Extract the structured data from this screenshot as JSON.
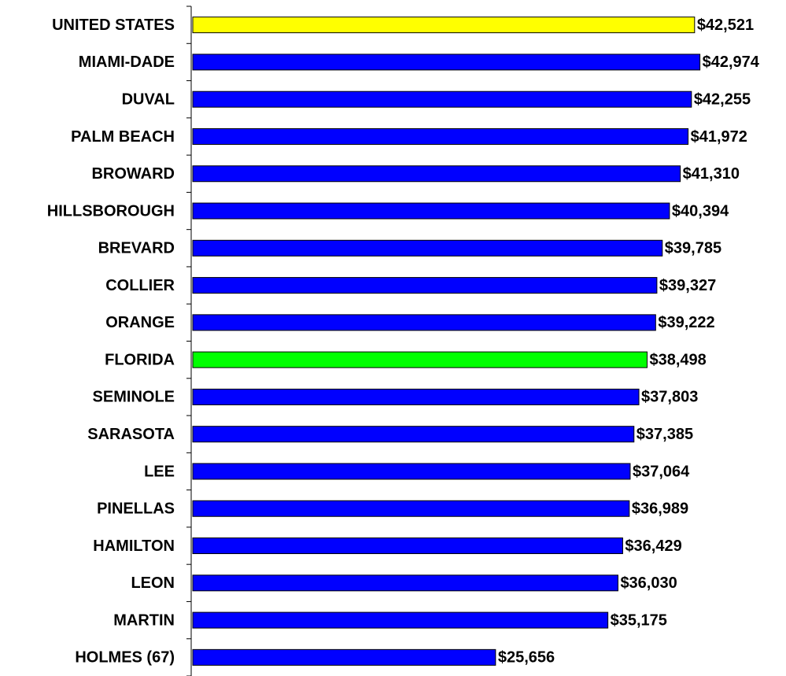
{
  "chart_data": {
    "type": "barh",
    "categories": [
      "UNITED STATES",
      "MIAMI-DADE",
      "DUVAL",
      "PALM BEACH",
      "BROWARD",
      "HILLSBOROUGH",
      "BREVARD",
      "COLLIER",
      "ORANGE",
      "FLORIDA",
      "SEMINOLE",
      "SARASOTA",
      "LEE",
      "PINELLAS",
      "HAMILTON",
      "LEON",
      "MARTIN",
      "HOLMES (67)"
    ],
    "values": [
      42521,
      42974,
      42255,
      41972,
      41310,
      40394,
      39785,
      39327,
      39222,
      38498,
      37803,
      37385,
      37064,
      36989,
      36429,
      36030,
      35175,
      25656
    ],
    "value_labels": [
      "$42,521",
      "$42,974",
      "$42,255",
      "$41,972",
      "$41,310",
      "$40,394",
      "$39,785",
      "$39,327",
      "$39,222",
      "$38,498",
      "$37,803",
      "$37,385",
      "$37,064",
      "$36,989",
      "$36,429",
      "$36,030",
      "$35,175",
      "$25,656"
    ],
    "colors": [
      "#ffff00",
      "#0000ff",
      "#0000ff",
      "#0000ff",
      "#0000ff",
      "#0000ff",
      "#0000ff",
      "#0000ff",
      "#0000ff",
      "#00ff00",
      "#0000ff",
      "#0000ff",
      "#0000ff",
      "#0000ff",
      "#0000ff",
      "#0000ff",
      "#0000ff",
      "#0000ff"
    ],
    "xlim": [
      0,
      50000
    ]
  }
}
